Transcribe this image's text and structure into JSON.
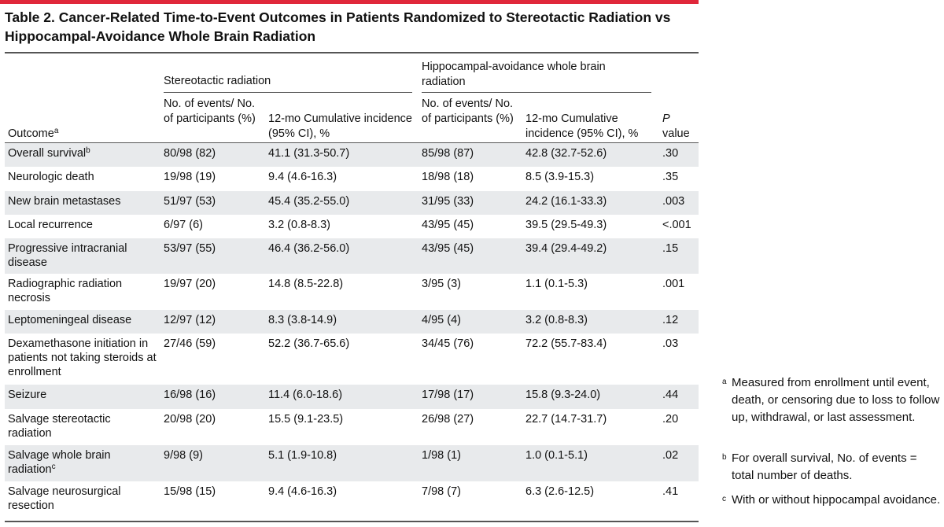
{
  "title": "Table 2. Cancer-Related Time-to-Event Outcomes in Patients Randomized to Stereotactic Radiation vs Hippocampal-Avoidance Whole Brain Radiation",
  "accent_color": "#e0273a",
  "row_shade_color": "#e8eaec",
  "header": {
    "outcome": "Outcome",
    "outcome_sup": "a",
    "group1": "Stereotactic radiation",
    "group2": "Hippocampal-avoidance whole brain radiation",
    "events_col": "No. of events/ No. of participants (%)",
    "incidence_col": "12-mo Cumulative incidence (95% CI), %",
    "p_italic": "P",
    "p_rest": "value"
  },
  "rows": [
    {
      "outcome": "Overall survival",
      "sup": "b",
      "sr_events": "80/98 (82)",
      "sr_inc": "41.1 (31.3-50.7)",
      "ha_events": "85/98 (87)",
      "ha_inc": "42.8 (32.7-52.6)",
      "p": ".30"
    },
    {
      "outcome": "Neurologic death",
      "sup": "",
      "sr_events": "19/98 (19)",
      "sr_inc": "9.4 (4.6-16.3)",
      "ha_events": "18/98 (18)",
      "ha_inc": "8.5 (3.9-15.3)",
      "p": ".35"
    },
    {
      "outcome": "New brain metastases",
      "sup": "",
      "sr_events": "51/97 (53)",
      "sr_inc": "45.4 (35.2-55.0)",
      "ha_events": "31/95 (33)",
      "ha_inc": "24.2 (16.1-33.3)",
      "p": ".003"
    },
    {
      "outcome": "Local recurrence",
      "sup": "",
      "sr_events": "6/97 (6)",
      "sr_inc": "3.2 (0.8-8.3)",
      "ha_events": "43/95 (45)",
      "ha_inc": "39.5 (29.5-49.3)",
      "p": "<.001"
    },
    {
      "outcome": "Progressive intracranial disease",
      "sup": "",
      "sr_events": "53/97 (55)",
      "sr_inc": "46.4 (36.2-56.0)",
      "ha_events": "43/95 (45)",
      "ha_inc": "39.4 (29.4-49.2)",
      "p": ".15"
    },
    {
      "outcome": "Radiographic radiation necrosis",
      "sup": "",
      "sr_events": "19/97 (20)",
      "sr_inc": "14.8 (8.5-22.8)",
      "ha_events": "3/95 (3)",
      "ha_inc": "1.1 (0.1-5.3)",
      "p": ".001"
    },
    {
      "outcome": "Leptomeningeal disease",
      "sup": "",
      "sr_events": "12/97 (12)",
      "sr_inc": "8.3 (3.8-14.9)",
      "ha_events": "4/95 (4)",
      "ha_inc": "3.2 (0.8-8.3)",
      "p": ".12"
    },
    {
      "outcome": "Dexamethasone initiation in patients not taking steroids at enrollment",
      "sup": "",
      "sr_events": "27/46 (59)",
      "sr_inc": "52.2 (36.7-65.6)",
      "ha_events": "34/45 (76)",
      "ha_inc": "72.2 (55.7-83.4)",
      "p": ".03"
    },
    {
      "outcome": "Seizure",
      "sup": "",
      "sr_events": "16/98 (16)",
      "sr_inc": "11.4 (6.0-18.6)",
      "ha_events": "17/98 (17)",
      "ha_inc": "15.8 (9.3-24.0)",
      "p": ".44"
    },
    {
      "outcome": "Salvage stereotactic radiation",
      "sup": "",
      "sr_events": "20/98 (20)",
      "sr_inc": "15.5 (9.1-23.5)",
      "ha_events": "26/98 (27)",
      "ha_inc": "22.7 (14.7-31.7)",
      "p": ".20"
    },
    {
      "outcome": "Salvage whole brain radiation",
      "sup": "c",
      "sr_events": "9/98 (9)",
      "sr_inc": "5.1 (1.9-10.8)",
      "ha_events": "1/98 (1)",
      "ha_inc": "1.0 (0.1-5.1)",
      "p": ".02"
    },
    {
      "outcome": "Salvage neurosurgical resection",
      "sup": "",
      "sr_events": "15/98 (15)",
      "sr_inc": "9.4 (4.6-16.3)",
      "ha_events": "7/98 (7)",
      "ha_inc": "6.3 (2.6-12.5)",
      "p": ".41"
    }
  ],
  "footnotes": [
    {
      "mark": "a",
      "text": "Measured from enrollment until event, death, or censoring due to loss to follow up, withdrawal, or last assessment."
    },
    {
      "mark": "b",
      "text": "For overall survival, No. of events = total number of deaths."
    },
    {
      "mark": "c",
      "text": "With or without hippocampal avoidance."
    }
  ]
}
